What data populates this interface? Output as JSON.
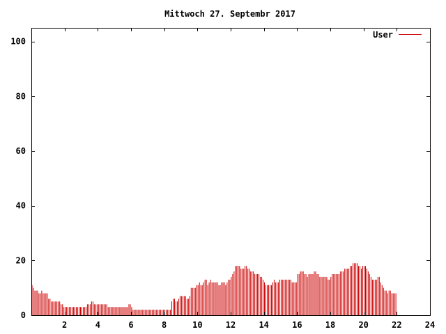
{
  "chart_data": {
    "type": "bar",
    "title": "Mittwoch 27. Septembr 2017",
    "xlabel": "",
    "ylabel": "",
    "xlim": [
      0,
      24
    ],
    "ylim": [
      0,
      105
    ],
    "x_ticks": [
      2,
      4,
      6,
      8,
      10,
      12,
      14,
      16,
      18,
      20,
      22,
      24
    ],
    "x_tick_labels": [
      "2",
      "4",
      "6",
      "8",
      "10",
      "12",
      "14",
      "16",
      "18",
      "20",
      "22",
      "24"
    ],
    "y_ticks": [
      0,
      20,
      40,
      60,
      80,
      100
    ],
    "y_tick_labels": [
      "0",
      "20",
      "40",
      "60",
      "80",
      "100"
    ],
    "grid": false,
    "legend": {
      "position": "top-right"
    },
    "series": [
      {
        "name": "User",
        "color": "#cc0000",
        "x_step_hours": 0.0833,
        "values": [
          11,
          10,
          9,
          9,
          9,
          8,
          8,
          9,
          8,
          8,
          8,
          8,
          6,
          6,
          5,
          5,
          5,
          5,
          5,
          5,
          5,
          4,
          4,
          3,
          3,
          3,
          3,
          3,
          3,
          3,
          3,
          3,
          3,
          3,
          3,
          3,
          3,
          3,
          3,
          3,
          4,
          4,
          4,
          5,
          5,
          4,
          4,
          4,
          4,
          4,
          4,
          4,
          4,
          4,
          4,
          3,
          3,
          3,
          3,
          3,
          3,
          3,
          3,
          3,
          3,
          3,
          3,
          3,
          3,
          3,
          4,
          4,
          3,
          2,
          2,
          2,
          2,
          2,
          2,
          2,
          2,
          2,
          2,
          2,
          2,
          2,
          2,
          2,
          2,
          2,
          2,
          2,
          2,
          2,
          2,
          2,
          2,
          2,
          2,
          2,
          2,
          5,
          6,
          6,
          5,
          5,
          6,
          7,
          7,
          7,
          7,
          7,
          6,
          6,
          7,
          10,
          10,
          10,
          10,
          11,
          11,
          12,
          11,
          11,
          12,
          13,
          13,
          11,
          12,
          13,
          12,
          12,
          12,
          12,
          12,
          11,
          11,
          12,
          12,
          12,
          11,
          12,
          13,
          13,
          14,
          15,
          16,
          18,
          18,
          18,
          18,
          17,
          17,
          17,
          18,
          18,
          17,
          17,
          16,
          16,
          16,
          15,
          15,
          15,
          15,
          14,
          14,
          13,
          12,
          11,
          11,
          11,
          11,
          11,
          12,
          13,
          12,
          12,
          12,
          13,
          13,
          13,
          13,
          13,
          13,
          13,
          13,
          13,
          12,
          12,
          12,
          12,
          15,
          15,
          16,
          16,
          16,
          15,
          15,
          14,
          15,
          15,
          15,
          15,
          16,
          16,
          15,
          15,
          14,
          14,
          14,
          14,
          14,
          14,
          13,
          13,
          14,
          15,
          15,
          15,
          15,
          15,
          15,
          16,
          16,
          16,
          17,
          17,
          17,
          17,
          18,
          18,
          19,
          19,
          19,
          19,
          18,
          18,
          17,
          18,
          18,
          18,
          17,
          16,
          15,
          14,
          13,
          13,
          13,
          13,
          14,
          14,
          12,
          11,
          10,
          9,
          9,
          8,
          9,
          9,
          8,
          8,
          8,
          8
        ]
      }
    ]
  }
}
